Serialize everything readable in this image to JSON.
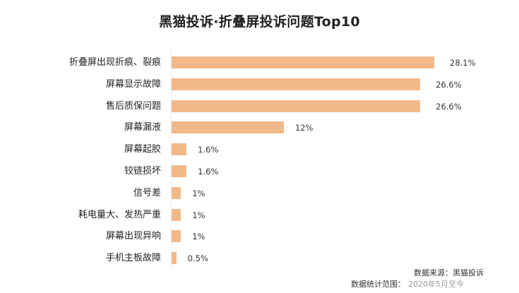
{
  "chart_data": {
    "type": "bar",
    "orientation": "horizontal",
    "title": "黑猫投诉·折叠屏投诉问题Top10",
    "categories": [
      "折叠屏出现折痕、裂痕",
      "屏幕显示故障",
      "售后质保问题",
      "屏幕漏液",
      "屏幕起胶",
      "铰链损坏",
      "信号差",
      "耗电量大、发热严重",
      "屏幕出现异响",
      "手机主板故障"
    ],
    "values": [
      28.1,
      26.6,
      26.6,
      12,
      1.6,
      1.6,
      1,
      1,
      1,
      0.5
    ],
    "value_labels": [
      "28.1%",
      "26.6%",
      "26.6%",
      "12%",
      "1.6%",
      "1.6%",
      "1%",
      "1%",
      "1%",
      "0.5%"
    ],
    "xlabel": "",
    "ylabel": "",
    "unit": "%",
    "bar_color": "#f1b98a",
    "grid": false,
    "legend": null
  },
  "footer": {
    "source": "数据来源：黑猫投诉",
    "range_label": "数据统计范围：",
    "range_date": "2020年5月至今"
  }
}
